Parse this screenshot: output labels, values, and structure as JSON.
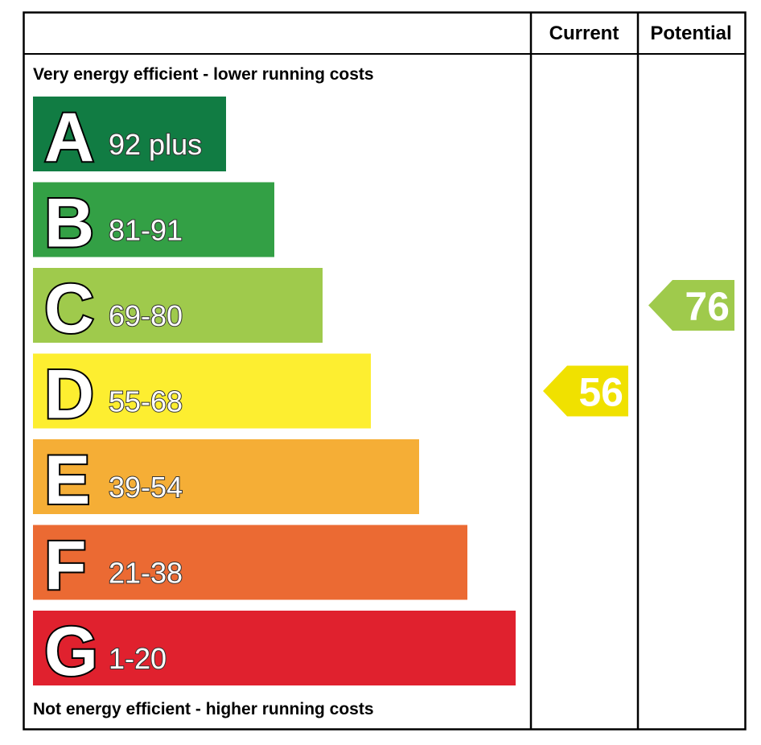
{
  "chart_data": {
    "type": "bar",
    "header": {
      "current": "Current",
      "potential": "Potential"
    },
    "top_note": "Very energy efficient - lower running costs",
    "bottom_note": "Not energy efficient - higher running costs",
    "bands": [
      {
        "letter": "A",
        "range": "92 plus",
        "color": "#117c43"
      },
      {
        "letter": "B",
        "range": "81-91",
        "color": "#33a045"
      },
      {
        "letter": "C",
        "range": "69-80",
        "color": "#9fca4c"
      },
      {
        "letter": "D",
        "range": "55-68",
        "color": "#fdee30"
      },
      {
        "letter": "E",
        "range": "39-54",
        "color": "#f5ae36"
      },
      {
        "letter": "F",
        "range": "21-38",
        "color": "#eb6a33"
      },
      {
        "letter": "G",
        "range": "1-20",
        "color": "#e0212e"
      }
    ],
    "current": {
      "value": 56,
      "band": "D",
      "color": "#f0e100"
    },
    "potential": {
      "value": 76,
      "band": "C",
      "color": "#9fca4c"
    }
  }
}
